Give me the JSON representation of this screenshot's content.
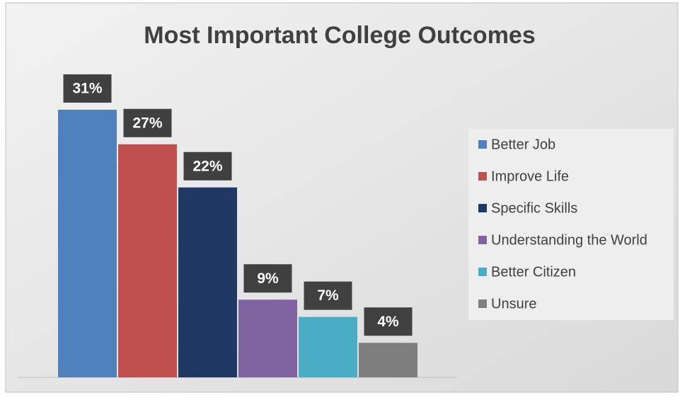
{
  "chart_data": {
    "type": "bar",
    "title": "Most Important College Outcomes",
    "series": [
      {
        "name": "Better Job",
        "color": "#4f81bd",
        "values": [
          31
        ],
        "value_labels": [
          "31%"
        ]
      },
      {
        "name": "Improve Life",
        "color": "#c0504d",
        "values": [
          27
        ],
        "value_labels": [
          "27%"
        ]
      },
      {
        "name": "Specific Skills",
        "color": "#1f3864",
        "values": [
          22
        ],
        "value_labels": [
          "22%"
        ]
      },
      {
        "name": "Understanding the World",
        "color": "#8064a2",
        "values": [
          9
        ],
        "value_labels": [
          "9%"
        ]
      },
      {
        "name": "Better Citizen",
        "color": "#4bacc6",
        "values": [
          7
        ],
        "value_labels": [
          "7%"
        ]
      },
      {
        "name": "Unsure",
        "color": "#7f7f7f",
        "values": [
          4
        ],
        "value_labels": [
          "4%"
        ]
      }
    ],
    "legend": "right"
  }
}
